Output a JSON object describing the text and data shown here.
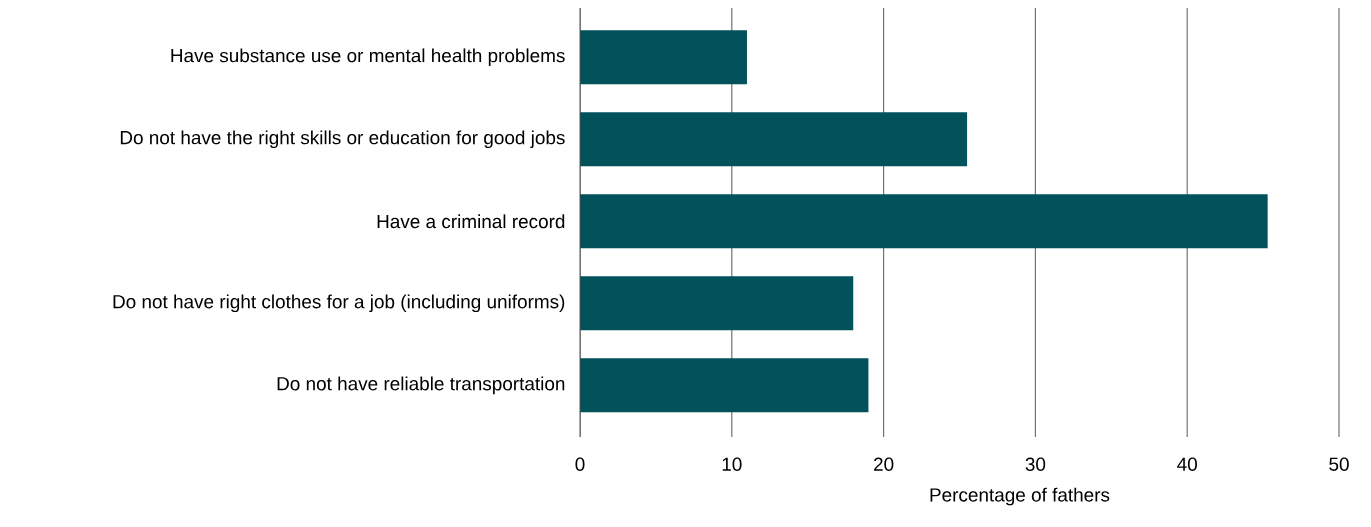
{
  "chart_data": {
    "type": "bar",
    "orientation": "horizontal",
    "categories": [
      "Have substance use or mental health problems",
      "Do not have the right skills or education for good jobs",
      "Have a criminal record",
      "Do not have right clothes for a job (including uniforms)",
      "Do not have reliable transportation"
    ],
    "values": [
      11,
      25.5,
      45.3,
      18,
      19
    ],
    "color": "#02525c",
    "xlabel": "Percentage of fathers",
    "xlim": [
      0,
      50
    ],
    "xticks": [
      0,
      10,
      20,
      30,
      40,
      50
    ],
    "grid": "x"
  }
}
